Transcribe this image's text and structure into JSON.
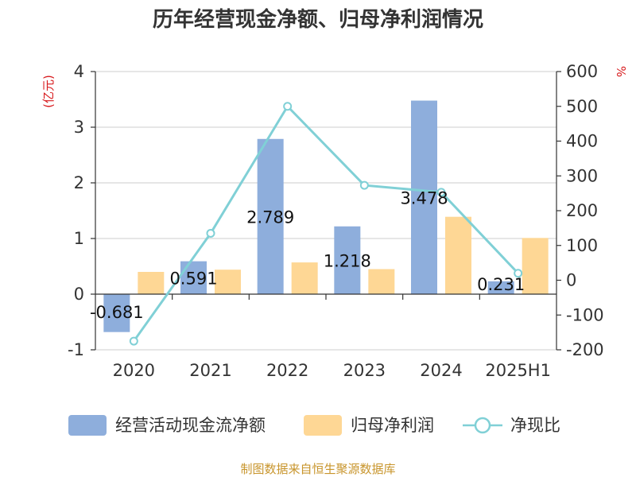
{
  "chart_data": {
    "type": "bar",
    "title": "历年经营现金净额、归母净利润情况",
    "categories": [
      "2020",
      "2021",
      "2022",
      "2023",
      "2024",
      "2025H1"
    ],
    "left_axis": {
      "unit": "(亿元)",
      "ylim": [
        -1,
        4
      ],
      "ticks": [
        "-1",
        "0",
        "1",
        "2",
        "3",
        "4"
      ]
    },
    "right_axis": {
      "unit": "%",
      "ylim": [
        -200,
        600
      ],
      "ticks": [
        "-200",
        "-100",
        "0",
        "100",
        "200",
        "300",
        "400",
        "500",
        "600"
      ]
    },
    "series": [
      {
        "name": "经营活动现金流净额",
        "kind": "bar",
        "axis": "left",
        "color": "#8eaedc",
        "values": [
          -0.681,
          0.591,
          2.789,
          1.218,
          3.478,
          0.231
        ],
        "labels": [
          "-0.681",
          "0.591",
          "2.789",
          "1.218",
          "3.478",
          "0.231"
        ]
      },
      {
        "name": "归母净利润",
        "kind": "bar",
        "axis": "left",
        "color": "#fed795",
        "values": [
          0.4,
          0.44,
          0.57,
          0.45,
          1.39,
          1.01
        ]
      },
      {
        "name": "净现比",
        "kind": "line",
        "axis": "right",
        "color": "#80d0d6",
        "values": [
          -175,
          135,
          500,
          273,
          253,
          20
        ]
      }
    ],
    "grid": true,
    "legend_position": "bottom"
  },
  "source_text": "制图数据来自恒生聚源数据库"
}
